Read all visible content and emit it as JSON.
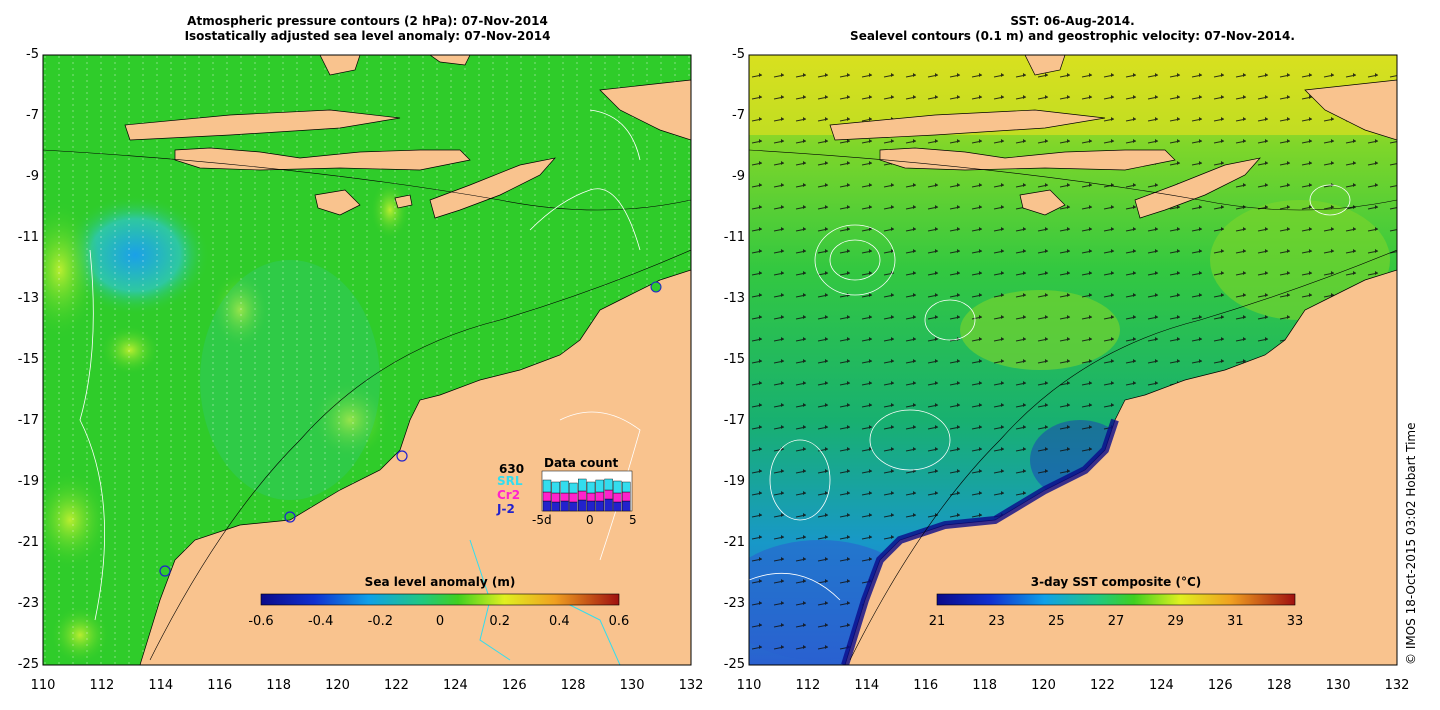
{
  "left_panel": {
    "title_line1": "Atmospheric pressure contours (2 hPa): 07-Nov-2014",
    "title_line2": "Isostatically adjusted sea level anomaly: 07-Nov-2014",
    "colorbar_title": "Sea level anomaly (m)",
    "colorbar_ticks": [
      "-0.6",
      "-0.4",
      "-0.2",
      "0",
      "0.2",
      "0.4",
      "0.6"
    ],
    "data_count": {
      "title": "Data count",
      "total": "630",
      "missions": [
        "SRL",
        "Cr2",
        "J-2"
      ],
      "mission_colors": [
        "#33ddee",
        "#ff22cc",
        "#2222cc"
      ],
      "x_ticks": [
        "-5d",
        "0",
        "5"
      ]
    }
  },
  "right_panel": {
    "title_line1": "SST: 06-Aug-2014.",
    "title_line2": "Sealevel contours (0.1 m) and geostrophic velocity: 07-Nov-2014.",
    "colorbar_title": "3-day SST composite (°C)",
    "colorbar_ticks": [
      "21",
      "23",
      "25",
      "27",
      "29",
      "31",
      "33"
    ]
  },
  "axes": {
    "y_ticks": [
      "-5",
      "-7",
      "-9",
      "-11",
      "-13",
      "-15",
      "-17",
      "-19",
      "-21",
      "-23",
      "-25"
    ],
    "x_ticks": [
      "110",
      "112",
      "114",
      "116",
      "118",
      "120",
      "122",
      "124",
      "126",
      "128",
      "130",
      "132"
    ]
  },
  "credit": "© IMOS 18-Oct-2015 03:02 Hobart Time",
  "colors": {
    "land": "#f9c38e",
    "ocean_green": "#2fcc2a",
    "ocean_blue": "#1f9fe0",
    "deep_blue": "#1a2ec0",
    "yellow": "#e8f020"
  }
}
